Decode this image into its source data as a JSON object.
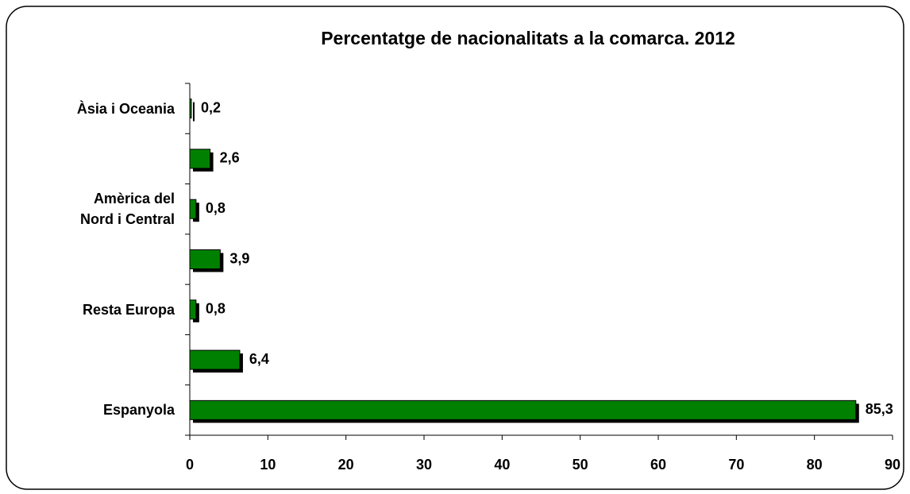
{
  "chart_data": {
    "type": "bar",
    "orientation": "horizontal",
    "title": "Percentatge de nacionalitats a la comarca. 2012",
    "categories": [
      "Àsia i Oceania",
      null,
      "Amèrica del\nNord i Central",
      null,
      "Resta Europa",
      null,
      "Espanyola"
    ],
    "values": [
      0.2,
      2.6,
      0.8,
      3.9,
      0.8,
      6.4,
      85.3
    ],
    "value_labels": [
      "0,2",
      "2,6",
      "0,8",
      "3,9",
      "0,8",
      "6,4",
      "85,3"
    ],
    "color": "#008000",
    "shadow_color": "#000000",
    "xlim": [
      0,
      90
    ],
    "xticks": [
      0,
      10,
      20,
      30,
      40,
      50,
      60,
      70,
      80,
      90
    ],
    "grid": false
  }
}
